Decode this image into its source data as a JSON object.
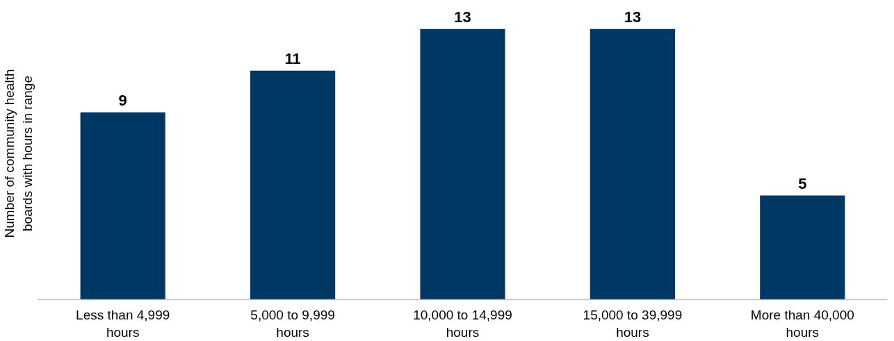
{
  "chart_data": {
    "type": "bar",
    "ylabel": "Number of community health boards with hours in range",
    "categories": [
      "Less than 4,999 hours",
      "5,000 to 9,999 hours",
      "10,000 to 14,999 hours",
      "15,000 to 39,999 hours",
      "More than 40,000 hours"
    ],
    "values": [
      9,
      11,
      13,
      13,
      5
    ],
    "color": "#003865",
    "data_labels": true,
    "grid": false
  }
}
